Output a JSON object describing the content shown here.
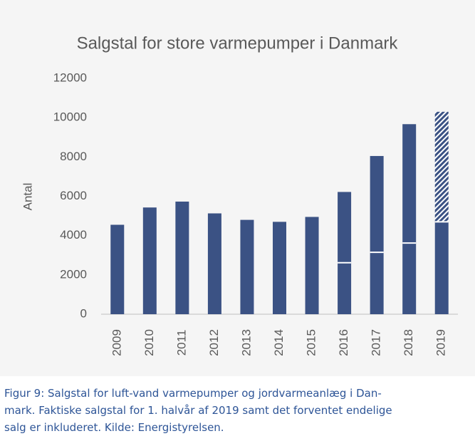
{
  "chart_data": {
    "type": "stacked_bar",
    "title": "Salgstal for store varmepumper i Danmark",
    "y_label": "Antal",
    "categories": [
      "2009",
      "2010",
      "2011",
      "2012",
      "2013",
      "2014",
      "2015",
      "2016",
      "2017",
      "2018",
      "2019"
    ],
    "series": [
      {
        "color": "#3b5284",
        "values": [
          4550,
          5430,
          5730,
          5130,
          4800,
          4700,
          4950,
          2620,
          3150,
          3620,
          4700
        ]
      },
      {
        "color": "#3b5284",
        "values": [
          null,
          null,
          null,
          null,
          null,
          null,
          null,
          3600,
          4900,
          6050,
          null
        ]
      },
      {
        "color": "#3b5284",
        "hatch": true,
        "values": [
          null,
          null,
          null,
          null,
          null,
          null,
          null,
          null,
          null,
          null,
          5600
        ]
      }
    ],
    "ylim": [
      0,
      12000
    ],
    "yticks": [
      0,
      2000,
      4000,
      6000,
      8000,
      10000,
      12000
    ],
    "grid": false
  },
  "caption": [
    "Figur 9: Salgstal for luft-vand varmepumper og jordvarmeanlæg i Dan-",
    "mark. Faktiske salgstal for 1. halvår af 2019 samt det forventet endelige",
    "salg er inkluderet. Kilde: Energistyrelsen."
  ]
}
